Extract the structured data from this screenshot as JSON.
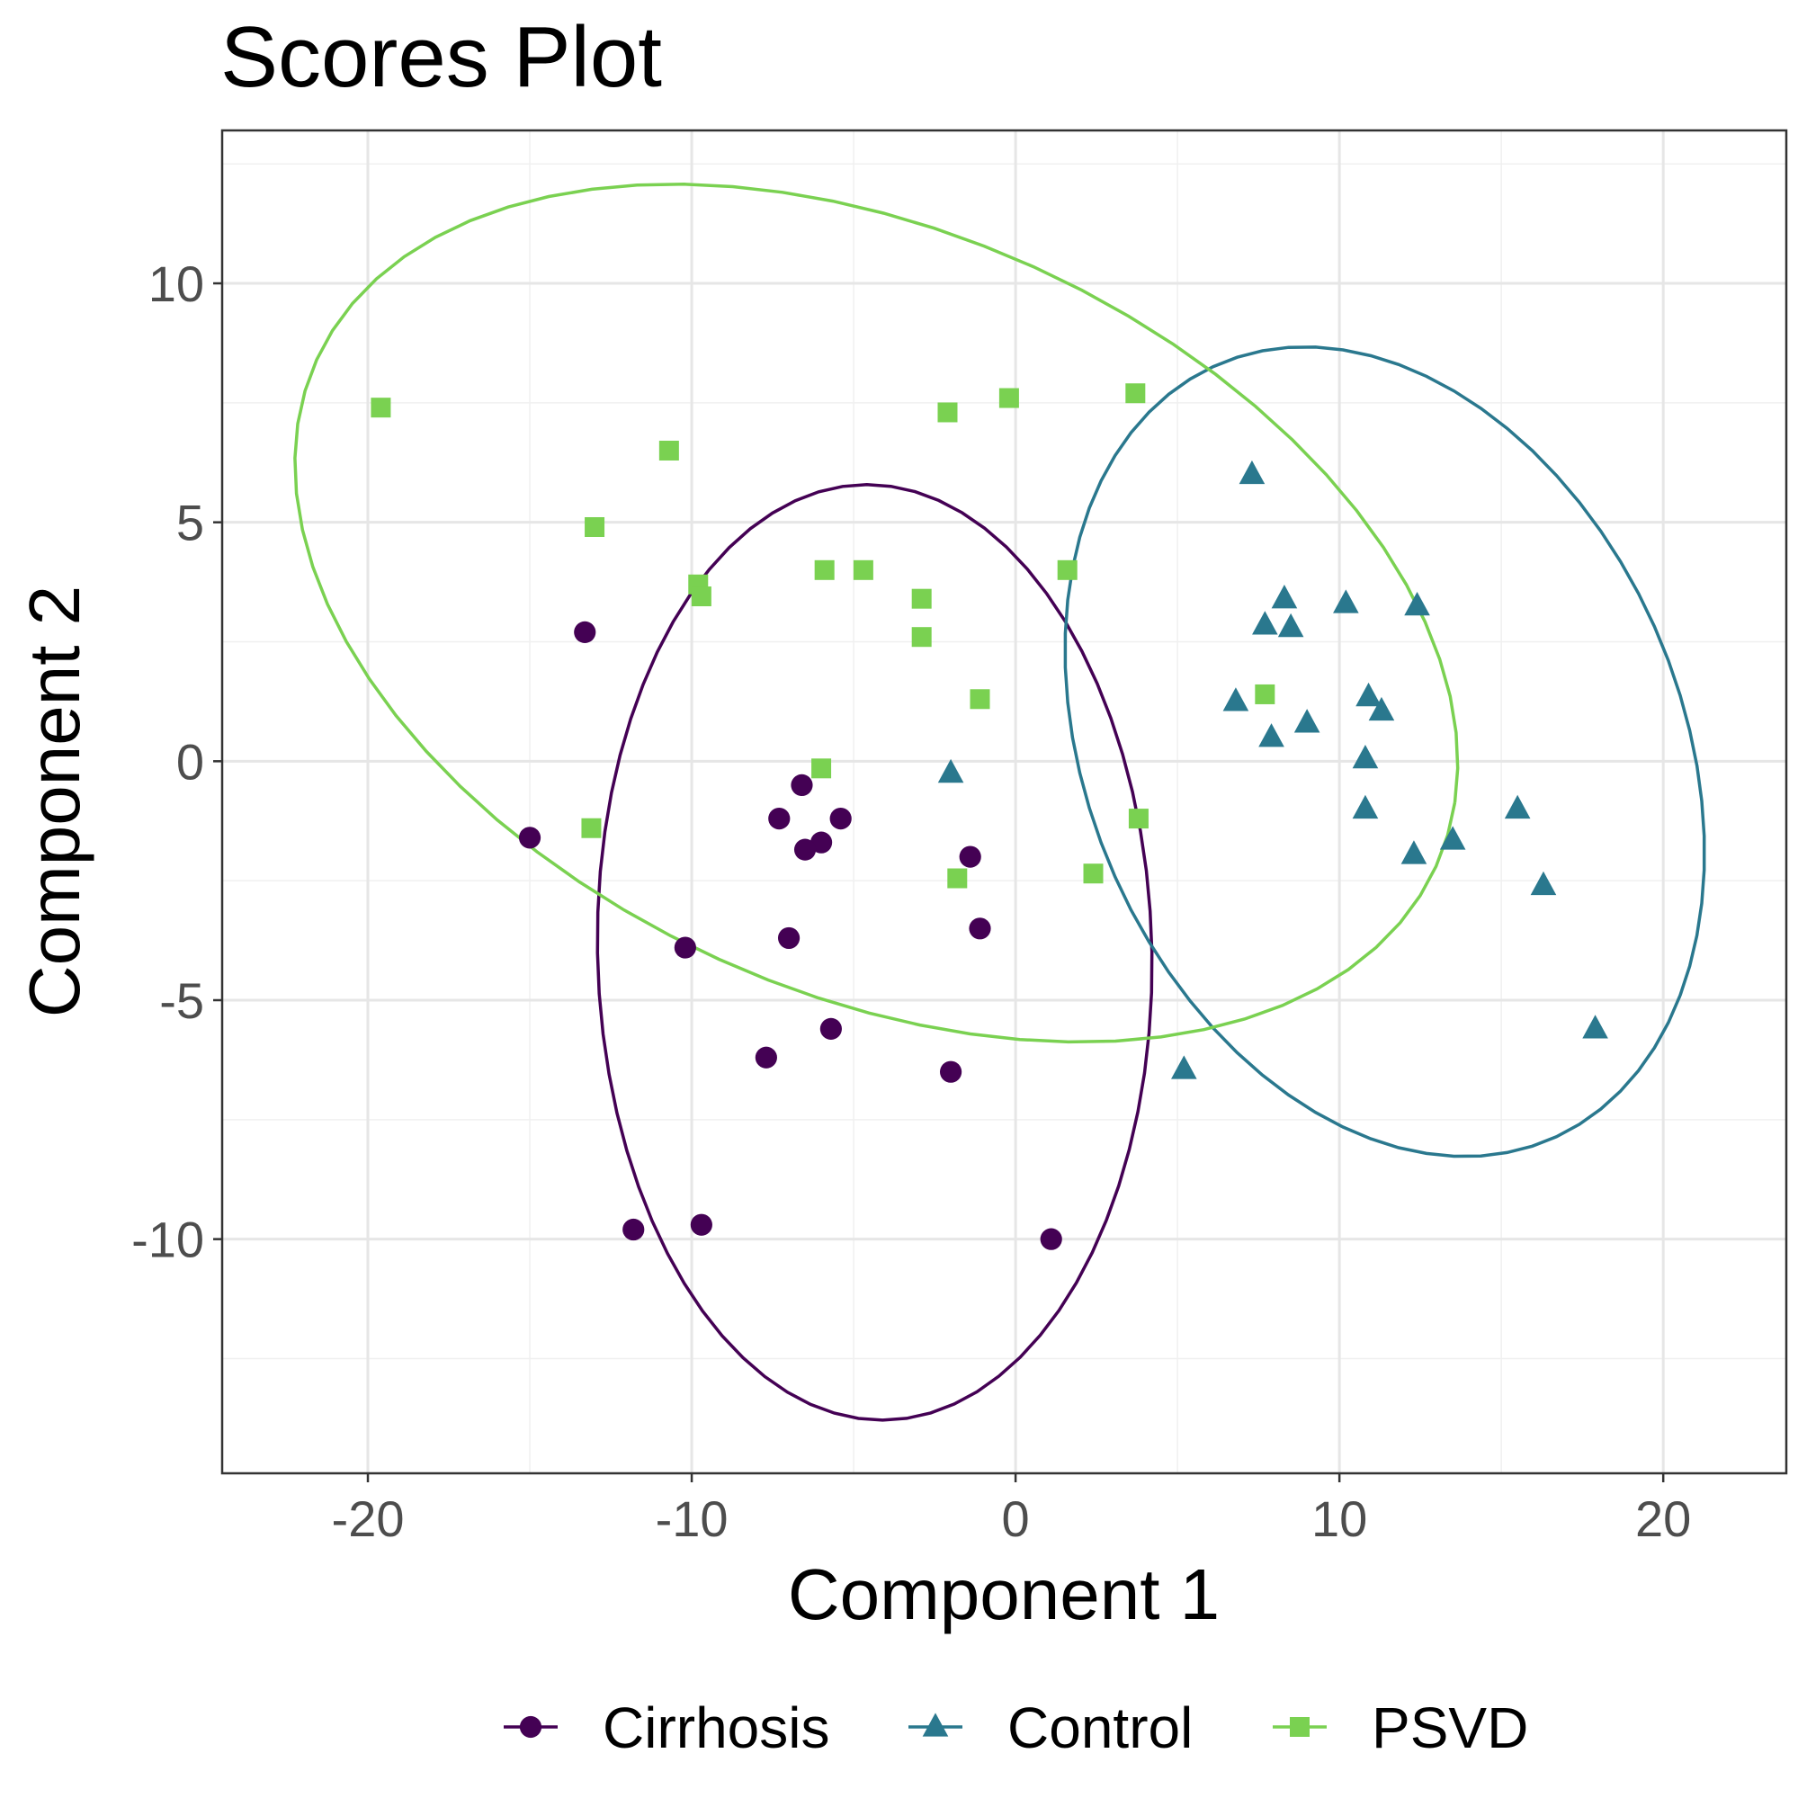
{
  "chart_data": {
    "type": "scatter",
    "title": "Scores Plot",
    "xlabel": "Component 1",
    "ylabel": "Component 2",
    "xlim": [
      -24.5,
      23.8
    ],
    "ylim": [
      -14.9,
      13.2
    ],
    "xticks": [
      -20,
      -10,
      0,
      10,
      20
    ],
    "yticks": [
      -10,
      -5,
      0,
      5,
      10
    ],
    "grid": true,
    "legend_position": "bottom",
    "series": [
      {
        "name": "Cirrhosis",
        "color": "#440154",
        "marker": "circle",
        "points": [
          [
            -13.3,
            2.7
          ],
          [
            -15.0,
            -1.6
          ],
          [
            -6.6,
            -0.5
          ],
          [
            -7.3,
            -1.2
          ],
          [
            -5.4,
            -1.2
          ],
          [
            -6.0,
            -1.7
          ],
          [
            -6.5,
            -1.85
          ],
          [
            -1.4,
            -2.0
          ],
          [
            -7.0,
            -3.7
          ],
          [
            -10.2,
            -3.9
          ],
          [
            -1.1,
            -3.5
          ],
          [
            -5.7,
            -5.6
          ],
          [
            -7.7,
            -6.2
          ],
          [
            -2.0,
            -6.5
          ],
          [
            -11.8,
            -9.8
          ],
          [
            -9.7,
            -9.7
          ],
          [
            1.1,
            -10.0
          ]
        ],
        "ellipse": {
          "cx": -4.35,
          "cy": -4.0,
          "rx": 8.55,
          "ry": 9.8,
          "angle": 5.8
        }
      },
      {
        "name": "Control",
        "color": "#2a788e",
        "marker": "triangle",
        "points": [
          [
            7.3,
            6.0
          ],
          [
            8.3,
            3.4
          ],
          [
            10.2,
            3.3
          ],
          [
            12.4,
            3.25
          ],
          [
            7.7,
            2.85
          ],
          [
            8.5,
            2.8
          ],
          [
            6.8,
            1.25
          ],
          [
            10.9,
            1.35
          ],
          [
            11.3,
            1.05
          ],
          [
            7.9,
            0.5
          ],
          [
            9.0,
            0.8
          ],
          [
            10.8,
            0.05
          ],
          [
            10.8,
            -1.0
          ],
          [
            15.5,
            -1.0
          ],
          [
            13.5,
            -1.65
          ],
          [
            12.3,
            -1.95
          ],
          [
            16.3,
            -2.6
          ],
          [
            17.9,
            -5.6
          ],
          [
            5.2,
            -6.45
          ],
          [
            -2.0,
            -0.25
          ]
        ],
        "ellipse": {
          "cx": 11.4,
          "cy": 0.2,
          "rx": 10.45,
          "ry": 7.75,
          "angle": -29.2
        }
      },
      {
        "name": "PSVD",
        "color": "#7ad151",
        "marker": "square",
        "points": [
          [
            -19.6,
            7.4
          ],
          [
            -10.7,
            6.5
          ],
          [
            -13.0,
            4.9
          ],
          [
            -2.1,
            7.3
          ],
          [
            -0.2,
            7.6
          ],
          [
            3.7,
            7.7
          ],
          [
            -9.8,
            3.7
          ],
          [
            -9.7,
            3.45
          ],
          [
            -5.9,
            4.0
          ],
          [
            -4.7,
            4.0
          ],
          [
            -2.9,
            3.4
          ],
          [
            -2.9,
            2.6
          ],
          [
            1.6,
            4.0
          ],
          [
            -1.1,
            1.3
          ],
          [
            7.7,
            1.4
          ],
          [
            -6.0,
            -0.15
          ],
          [
            -13.1,
            -1.4
          ],
          [
            3.8,
            -1.2
          ],
          [
            -1.8,
            -2.45
          ],
          [
            2.4,
            -2.35
          ]
        ],
        "ellipse": {
          "cx": -4.3,
          "cy": 3.1,
          "rx": 18.3,
          "ry": 8.25,
          "angle": -12.5
        }
      }
    ]
  }
}
